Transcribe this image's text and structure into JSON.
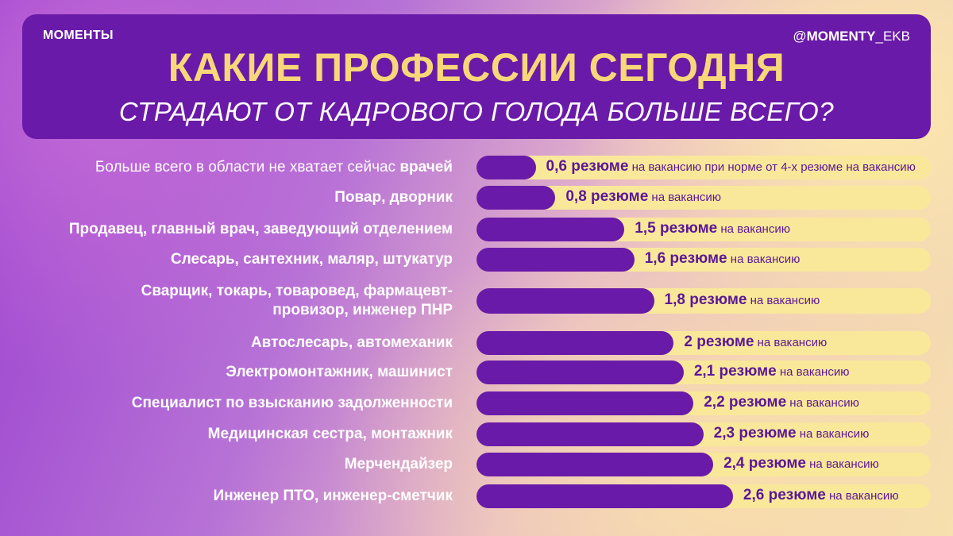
{
  "header": {
    "brand": "МОМЕНТЫ",
    "handle_prefix": "@",
    "handle_bold": "MOMENTY",
    "handle_suffix": "_EKB",
    "title": "КАКИЕ ПРОФЕССИИ СЕГОДНЯ",
    "subtitle": "СТРАДАЮТ ОТ КАДРОВОГО ГОЛОДА БОЛЬШЕ ВСЕГО?"
  },
  "colors": {
    "header_bg": "#6a1aa8",
    "title": "#f8d778",
    "bar": "#6a1aa8",
    "track": "#fae89a",
    "value_text": "#5b1896"
  },
  "chart_data": {
    "type": "bar",
    "orientation": "horizontal",
    "xlim": [
      0,
      4
    ],
    "unit_label": "резюме",
    "categories": [
      {
        "label_plain": "Больше всего в области не хватает сейчас ",
        "label_bold": "врачей",
        "value": 0.6,
        "value_label": "0,6 резюме",
        "suffix": "на вакансию при норме от 4-х резюме на вакансию"
      },
      {
        "label_bold": "Повар, дворник",
        "value": 0.8,
        "value_label": "0,8 резюме",
        "suffix": "на вакансию"
      },
      {
        "label_bold": "Продавец, главный врач, заведующий отделением",
        "value": 1.5,
        "value_label": "1,5 резюме",
        "suffix": "на вакансию"
      },
      {
        "label_bold": "Слесарь, сантехник, маляр, штукатур",
        "value": 1.6,
        "value_label": "1,6 резюме",
        "suffix": "на вакансию"
      },
      {
        "label_bold": "Сварщик, токарь, товаровед, фармацевт-",
        "label_bold_line2": "провизор, инженер ПНР",
        "value": 1.8,
        "value_label": "1,8 резюме",
        "suffix": "на вакансию"
      },
      {
        "label_bold": "Автослесарь, автомеханик",
        "value": 2,
        "value_label": "2 резюме",
        "suffix": "на вакансию"
      },
      {
        "label_bold": "Электромонтажник, машинист",
        "value": 2.1,
        "value_label": "2,1 резюме",
        "suffix": "на вакансию"
      },
      {
        "label_bold": "Специалист по взысканию задолженности",
        "value": 2.2,
        "value_label": "2,2 резюме",
        "suffix": "на вакансию"
      },
      {
        "label_bold": "Медицинская сестра, монтажник",
        "value": 2.3,
        "value_label": "2,3 резюме",
        "suffix": "на вакансию"
      },
      {
        "label_bold": "Мерчендайзер",
        "value": 2.4,
        "value_label": "2,4 резюме",
        "suffix": "на вакансию"
      },
      {
        "label_bold": "Инженер ПТО, инженер-сметчик",
        "value": 2.6,
        "value_label": "2,6 резюме",
        "suffix": "на вакансию"
      }
    ]
  }
}
